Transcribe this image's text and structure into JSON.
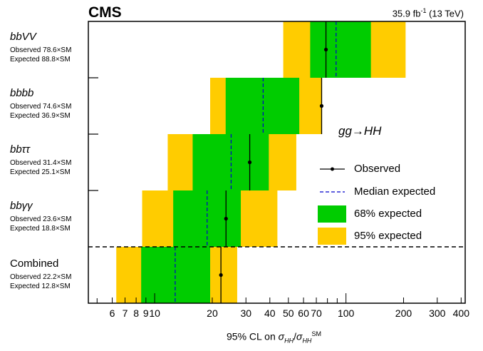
{
  "header": {
    "experiment": "CMS",
    "lumi_value": "35.9 fb",
    "lumi_exp": "-1",
    "lumi_energy": " (13 TeV)"
  },
  "process_label": "gg→HH",
  "legend": {
    "observed": "Observed",
    "median": "Median expected",
    "band68": "68% expected",
    "band95": "95% expected"
  },
  "axis": {
    "xtitle_pre": "95% CL on ",
    "xtitle_sigma": "σ",
    "xtitle_sub": "HH",
    "xtitle_slash": "/",
    "xtitle_sup": "SM"
  },
  "chart_data": {
    "type": "limit-bands",
    "x_scale": "log",
    "xlim": [
      4.5,
      420
    ],
    "x_ticks": [
      6,
      7,
      8,
      9,
      10,
      20,
      30,
      40,
      50,
      60,
      70,
      100,
      200,
      300,
      400
    ],
    "x_tick_labels": [
      "6",
      "7",
      "8",
      "9",
      "10",
      "20",
      "30",
      "40",
      "50",
      "60",
      "70",
      "100",
      "200",
      "300",
      "400"
    ],
    "colors": {
      "band68": "#00cc00",
      "band95": "#ffcc00",
      "median": "#0000cc",
      "observed": "#000000"
    },
    "channels": [
      {
        "name": "bbVV",
        "observed_text": "Observed 78.6×SM",
        "expected_text": "Expected 88.8×SM",
        "observed": 78.6,
        "expected": 88.8,
        "band68": [
          65,
          135
        ],
        "band95": [
          47,
          205
        ]
      },
      {
        "name": "bbbb",
        "observed_text": "Observed 74.6×SM",
        "expected_text": "Expected 36.9×SM",
        "observed": 74.6,
        "expected": 36.9,
        "band68": [
          23.5,
          57
        ],
        "band95": [
          19.5,
          75
        ]
      },
      {
        "name": "bbττ",
        "observed_text": "Observed 31.4×SM",
        "expected_text": "Expected 25.1×SM",
        "observed": 31.4,
        "expected": 25.1,
        "band68": [
          15.8,
          39.5
        ],
        "band95": [
          11.7,
          55
        ]
      },
      {
        "name": "bbγγ",
        "observed_text": "Observed 23.6×SM",
        "expected_text": "Expected 18.8×SM",
        "observed": 23.6,
        "expected": 18.8,
        "band68": [
          12.5,
          28.2
        ],
        "band95": [
          8.6,
          43.8
        ]
      },
      {
        "name": "Combined",
        "observed_text": "Observed 22.2×SM",
        "expected_text": "Expected 12.8×SM",
        "observed": 22.2,
        "expected": 12.8,
        "band68": [
          8.5,
          19.5
        ],
        "band95": [
          6.3,
          27
        ]
      }
    ]
  }
}
